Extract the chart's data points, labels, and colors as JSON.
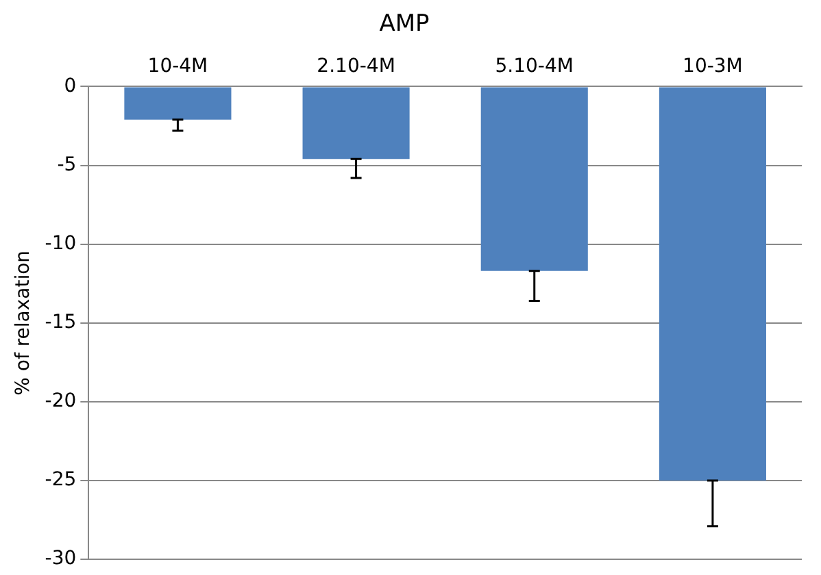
{
  "chart_data": {
    "type": "bar",
    "title": "AMP",
    "ylabel": "% of relaxation",
    "categories": [
      "10-4M",
      "2.10-4M",
      "5.10-4M",
      "10-3M"
    ],
    "values": [
      -2.1,
      -4.6,
      -11.7,
      -25.0
    ],
    "errors": [
      [
        -2.8,
        -2.1
      ],
      [
        -5.8,
        -4.6
      ],
      [
        -13.6,
        -11.7
      ],
      [
        -27.9,
        -25.0
      ]
    ],
    "color": "#4f81bd",
    "ylim": [
      -30,
      0
    ],
    "yticks": [
      -30,
      -25,
      -20,
      -15,
      -10,
      -5,
      0
    ],
    "grid": "y"
  }
}
